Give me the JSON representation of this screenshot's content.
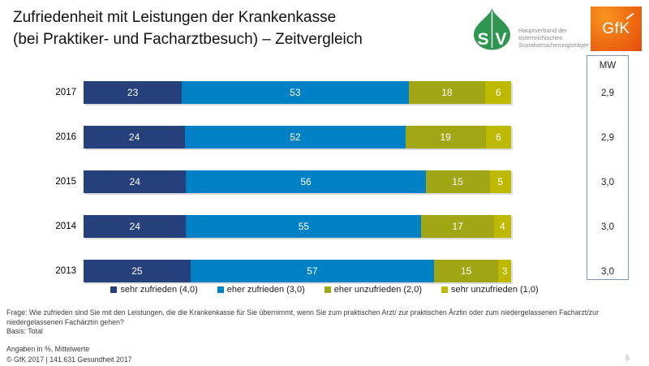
{
  "title": {
    "line1": "Zufriedenheit mit Leistungen der Krankenkasse",
    "line2": "(bei Praktiker- und Facharztbesuch) – Zeitvergleich"
  },
  "logos": {
    "sv": {
      "letters": [
        "S",
        "V"
      ],
      "org_lines": [
        "Hauptverband der",
        "österreichischen",
        "Sozialversicherungsträger"
      ],
      "green": "#2e9650"
    },
    "gfk": {
      "text": "GfK",
      "orange": "#ee5b0b"
    }
  },
  "mw": {
    "header": "MW",
    "values": [
      "2,9",
      "2,9",
      "3,0",
      "3,0",
      "3,0"
    ]
  },
  "chart_data": {
    "type": "bar",
    "stacked": true,
    "orientation": "horizontal",
    "unit": "%",
    "xlim": [
      0,
      100
    ],
    "categories": [
      "2017",
      "2016",
      "2015",
      "2014",
      "2013"
    ],
    "series": [
      {
        "name": "sehr zufrieden (4,0)",
        "color": "#26407c",
        "values": [
          23,
          24,
          24,
          24,
          25
        ]
      },
      {
        "name": "eher zufrieden (3,0)",
        "color": "#0081c6",
        "values": [
          53,
          52,
          56,
          55,
          57
        ]
      },
      {
        "name": "eher unzufrieden (2,0)",
        "color": "#a1a714",
        "values": [
          18,
          19,
          15,
          17,
          15
        ]
      },
      {
        "name": "sehr unzufrieden (1,0)",
        "color": "#bdb800",
        "values": [
          6,
          6,
          5,
          4,
          3
        ]
      }
    ],
    "mittelwerte": [
      "2,9",
      "2,9",
      "3,0",
      "3,0",
      "3,0"
    ],
    "legend_position": "bottom",
    "grid": false
  },
  "footer": {
    "question": "Frage: Wie zufrieden sind Sie mit den Leistungen, die die Krankenkasse für Sie übernimmt, wenn Sie zum praktischen Arzt/ zur praktischen Ärztin oder zum niedergelassenen Facharzt/zur niedergelassenen Fachärztin gehen?",
    "basis": "Basis: Total",
    "note": "Angaben in %, Mittelwerte",
    "copyright": "© GfK 2017 | 141.631 Gesundheit 2017",
    "page_number": "5"
  }
}
